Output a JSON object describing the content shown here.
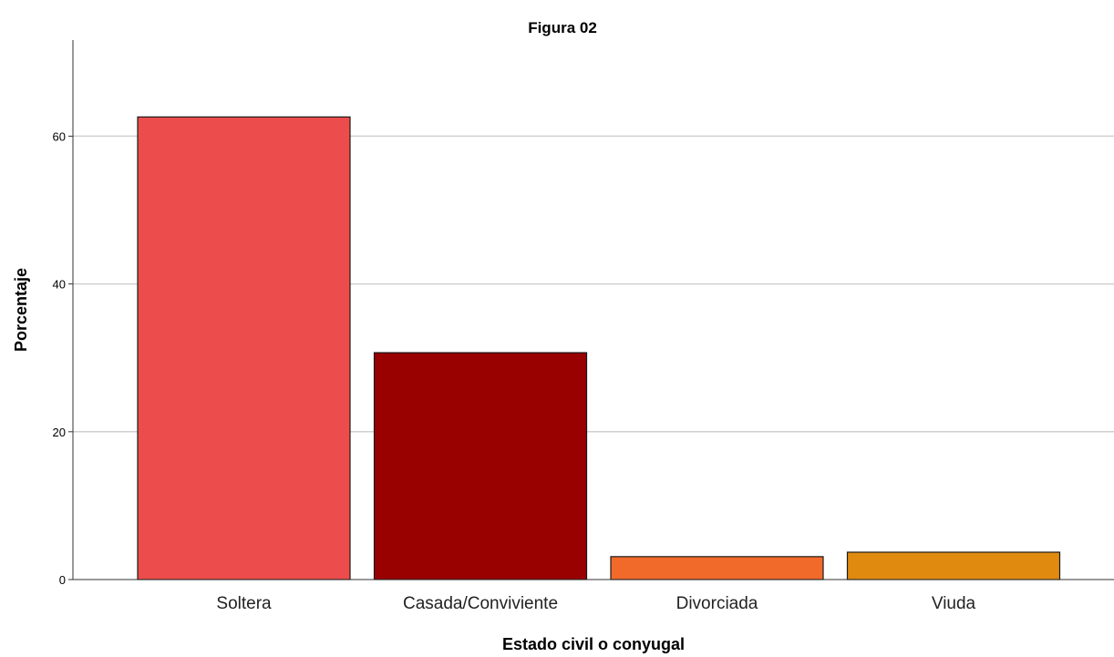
{
  "chart_data": {
    "type": "bar",
    "title": "Figura 02",
    "xlabel": "Estado civil o conyugal",
    "ylabel": "Porcentaje",
    "categories": [
      "Soltera",
      "Casada/Conviviente",
      "Divorciada",
      "Viuda"
    ],
    "values": [
      62.6,
      30.7,
      3.1,
      3.7
    ],
    "colors": [
      "#ec4c4c",
      "#990000",
      "#f26a2a",
      "#e08a10"
    ],
    "ylim": [
      0,
      73
    ],
    "yticks": [
      0,
      20,
      40,
      60
    ],
    "grid": true,
    "legend": "none"
  }
}
